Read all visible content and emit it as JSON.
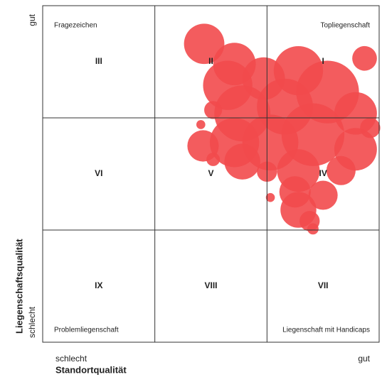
{
  "chart_data": {
    "type": "bubble",
    "color": "#f24a4d",
    "xlim": [
      0,
      3
    ],
    "ylim": [
      0,
      3
    ],
    "x_axis": {
      "low": "schlecht",
      "high": "gut",
      "title": "Standortqualität"
    },
    "y_axis": {
      "low": "schlecht",
      "high": "gut",
      "title": "Liegenschaftsqualität"
    },
    "cells": [
      [
        "III",
        "II",
        "I"
      ],
      [
        "VI",
        "V",
        "IV"
      ],
      [
        "IX",
        "VIII",
        "VII"
      ]
    ],
    "corner_labels": {
      "top_left": "Fragezeichen",
      "top_right": "Topliegenschaft",
      "bottom_left": "Problemliegenschaft",
      "bottom_right": "Liegenschaft mit Handicaps"
    },
    "x": [
      1.44,
      2.87,
      1.71,
      1.65,
      1.97,
      2.28,
      2.54,
      2.16,
      1.78,
      2.79,
      1.52,
      2.92,
      1.41,
      1.43,
      1.52,
      1.71,
      2.03,
      2.41,
      2.79,
      1.78,
      2.0,
      2.28,
      2.66,
      2.5,
      2.25,
      2.03,
      2.28,
      2.38,
      2.41
    ],
    "values": [
      2.66,
      2.53,
      2.48,
      2.29,
      2.35,
      2.42,
      2.23,
      2.1,
      2.04,
      2.04,
      2.07,
      1.91,
      1.94,
      1.75,
      1.63,
      1.78,
      1.78,
      1.85,
      1.72,
      1.61,
      1.52,
      1.53,
      1.53,
      1.31,
      1.34,
      1.29,
      1.18,
      1.08,
      1.01
    ],
    "sizes": [
      0.18,
      0.11,
      0.19,
      0.22,
      0.19,
      0.22,
      0.28,
      0.25,
      0.25,
      0.19,
      0.08,
      0.09,
      0.04,
      0.14,
      0.06,
      0.22,
      0.25,
      0.28,
      0.19,
      0.16,
      0.09,
      0.19,
      0.13,
      0.13,
      0.14,
      0.04,
      0.16,
      0.09,
      0.05
    ]
  }
}
